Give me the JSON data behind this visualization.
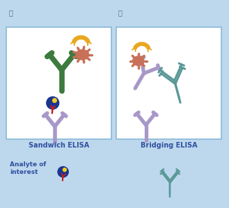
{
  "background_color": "#bdd8ed",
  "box_color": "#ffffff",
  "box_edge_color": "#88b8d8",
  "title_A": "Ⓐ",
  "title_B": "Ⓑ",
  "label_sandwich": "Sandwich ELISA",
  "label_bridging": "Bridging ELISA",
  "label_analyte": "Analyte of\ninterest",
  "color_green": "#3d7a3d",
  "color_purple": "#a898c8",
  "color_teal": "#5a9898",
  "color_orange": "#e8a820",
  "color_salmon": "#c87058",
  "color_blue_ball": "#1a3590",
  "color_yellow_spot": "#f0d020",
  "color_red_spike": "#c02020",
  "label_fontsize": 7,
  "title_fontsize": 7
}
